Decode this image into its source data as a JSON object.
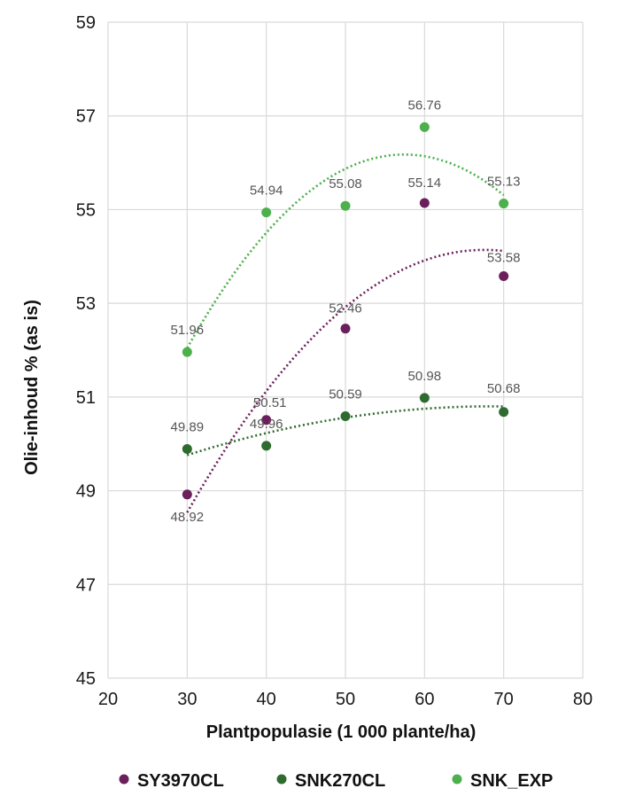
{
  "chart_data": {
    "type": "scatter",
    "title": "",
    "xlabel": "Plantpopulasie (1 000 plante/ha)",
    "ylabel": "Olie-inhoud % (as is)",
    "xlim": [
      20,
      80
    ],
    "ylim": [
      45,
      59
    ],
    "xticks": [
      20,
      30,
      40,
      50,
      60,
      70,
      80
    ],
    "yticks": [
      45,
      47,
      49,
      51,
      53,
      55,
      57,
      59
    ],
    "grid": true,
    "legend_position": "bottom",
    "trendline": "polynomial (dotted)",
    "series": [
      {
        "name": "SY3970CL",
        "color": "#6b1f5b",
        "x": [
          30,
          40,
          50,
          60,
          70
        ],
        "y": [
          48.92,
          50.51,
          52.46,
          55.14,
          53.58
        ],
        "labels": [
          "48.92",
          "50.51",
          "52.46",
          "55.14",
          "53.58"
        ]
      },
      {
        "name": "SNK270CL",
        "color": "#2f6b2f",
        "x": [
          30,
          40,
          50,
          60,
          70
        ],
        "y": [
          49.89,
          49.96,
          50.59,
          50.98,
          50.68
        ],
        "labels": [
          "49.89",
          "49.96",
          "50.59",
          "50.98",
          "50.68"
        ]
      },
      {
        "name": "SNK_EXP",
        "color": "#4cb04c",
        "x": [
          30,
          40,
          50,
          60,
          70
        ],
        "y": [
          51.96,
          54.94,
          55.08,
          56.76,
          55.13
        ],
        "labels": [
          "51.96",
          "54.94",
          "55.08",
          "56.76",
          "55.13"
        ]
      }
    ]
  }
}
